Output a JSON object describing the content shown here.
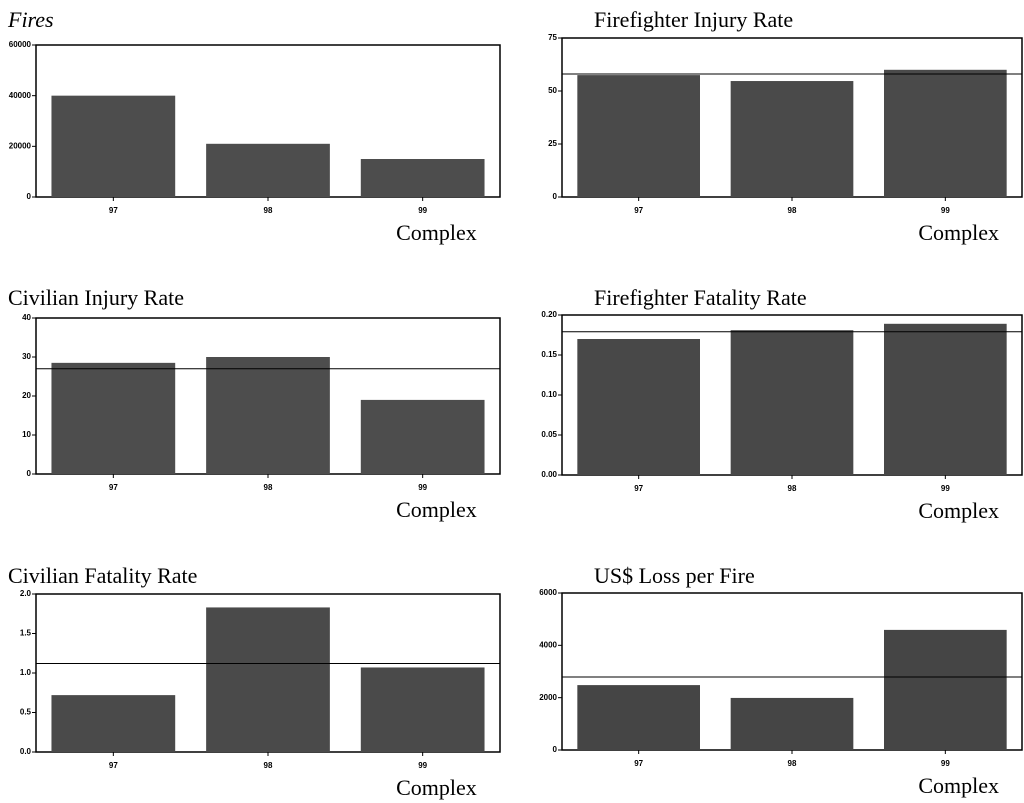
{
  "chart_data": [
    {
      "type": "bar",
      "title": "Fires",
      "xlabel": "Complex",
      "categories": [
        "97",
        "98",
        "99"
      ],
      "values": [
        40000,
        21000,
        15000
      ],
      "color": "#4d4d4d",
      "ylim": [
        0,
        60000
      ],
      "yticks": [
        0,
        20000,
        40000,
        60000
      ]
    },
    {
      "type": "bar",
      "title": "Firefighter Injury Rate",
      "xlabel": "Complex",
      "categories": [
        "97",
        "98",
        "99"
      ],
      "values": [
        57.5,
        54.7,
        60
      ],
      "reference_line": 58,
      "color": "#4a4a4a",
      "ylim": [
        0,
        75
      ],
      "yticks": [
        0,
        25,
        50,
        75
      ]
    },
    {
      "type": "bar",
      "title": "Civilian Injury Rate",
      "xlabel": "Complex",
      "categories": [
        "97",
        "98",
        "99"
      ],
      "values": [
        28.5,
        30,
        19
      ],
      "reference_line": 27,
      "color": "#4d4d4d",
      "ylim": [
        0,
        40
      ],
      "yticks": [
        0,
        10,
        20,
        30,
        40
      ]
    },
    {
      "type": "bar",
      "title": "Firefighter Fatality Rate",
      "xlabel": "Complex",
      "categories": [
        "97",
        "98",
        "99"
      ],
      "values": [
        0.17,
        0.181,
        0.189
      ],
      "reference_line": 0.179,
      "color": "#484848",
      "ylim": [
        0,
        0.2
      ],
      "yticks": [
        {
          "value": 0,
          "label": "0.00"
        },
        0.05,
        {
          "value": 0.1,
          "label": "0.10"
        },
        0.15,
        {
          "value": 0.2,
          "label": "0.20"
        }
      ]
    },
    {
      "type": "bar",
      "title": "Civilian Fatality Rate",
      "xlabel": "Complex",
      "categories": [
        "97",
        "98",
        "99"
      ],
      "values": [
        0.72,
        1.83,
        1.07
      ],
      "reference_line": 1.12,
      "color": "#4a4a4a",
      "ylim": [
        0,
        2
      ],
      "yticks": [
        {
          "value": 0,
          "label": "0.0"
        },
        0.5,
        {
          "value": 1,
          "label": "1.0"
        },
        1.5,
        {
          "value": 2,
          "label": "2.0"
        }
      ]
    },
    {
      "type": "bar",
      "title": "US$ Loss per Fire",
      "xlabel": "Complex",
      "categories": [
        "97",
        "98",
        "99"
      ],
      "values": [
        2480,
        1990,
        4590
      ],
      "reference_line": 2790,
      "color": "#454545",
      "ylim": [
        0,
        6000
      ],
      "yticks": [
        0,
        2000,
        4000,
        6000
      ]
    }
  ]
}
